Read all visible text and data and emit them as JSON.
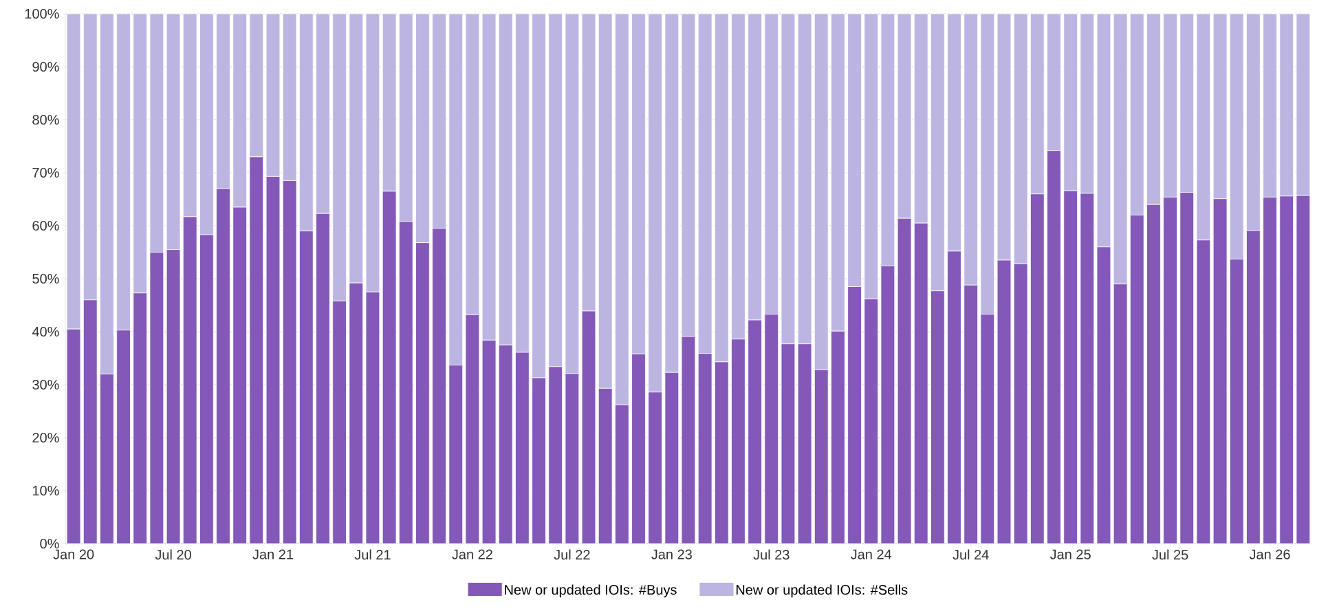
{
  "chart_data": {
    "type": "bar",
    "stacked": true,
    "categories": [
      "Jan 20",
      null,
      null,
      null,
      null,
      null,
      "Jul 20",
      null,
      null,
      null,
      null,
      null,
      "Jan 21",
      null,
      null,
      null,
      null,
      null,
      "Jul 21",
      null,
      null,
      null,
      null,
      null,
      "Jan 22",
      null,
      null,
      null,
      null,
      null,
      "Jul 22",
      null,
      null,
      null,
      null,
      null,
      "Jan 23",
      null,
      null,
      null,
      null,
      null,
      "Jul 23",
      null,
      null,
      null,
      null,
      null,
      "Jan 24",
      null,
      null,
      null,
      null,
      null,
      "Jul 24",
      null,
      null,
      null,
      null,
      null,
      "Jan 25",
      null,
      null,
      null,
      null,
      null,
      "Jul 25",
      null,
      null,
      null,
      null,
      null,
      "Jan 26",
      null,
      null
    ],
    "series": [
      {
        "name": "New or updated IOIs: #Buys",
        "color": "#8358b8",
        "values": [
          40.5,
          46,
          32,
          40.3,
          47.3,
          55,
          55.5,
          61.7,
          58.3,
          67,
          63.5,
          73,
          69.3,
          68.5,
          59,
          62.3,
          45.8,
          49.2,
          47.5,
          66.5,
          60.8,
          56.8,
          59.5,
          33.7,
          43.2,
          38.4,
          37.5,
          36.1,
          31.3,
          33.4,
          32.1,
          43.9,
          29.3,
          26.2,
          35.8,
          28.6,
          32.3,
          39.1,
          35.9,
          34.3,
          38.6,
          42.2,
          43.3,
          37.7,
          37.7,
          32.8,
          40.1,
          48.5,
          46.2,
          52.4,
          61.4,
          60.5,
          47.7,
          55.2,
          48.8,
          43.3,
          53.5,
          52.8,
          66,
          74.2,
          66.6,
          66.1,
          56,
          49,
          62,
          64,
          65.4,
          66.3,
          57.3,
          65.1,
          53.7,
          59.1,
          65.4,
          65.6,
          65.7
        ]
      },
      {
        "name": "New or updated IOIs: #Sells",
        "color": "#bdb5e1",
        "values": [
          59.5,
          54,
          68,
          59.7,
          52.7,
          45,
          44.5,
          38.3,
          41.7,
          33,
          36.5,
          27,
          30.7,
          31.5,
          41,
          37.7,
          54.2,
          50.8,
          52.5,
          33.5,
          39.2,
          43.2,
          40.5,
          66.3,
          56.8,
          61.6,
          62.5,
          63.9,
          68.7,
          66.6,
          67.9,
          56.1,
          70.7,
          73.8,
          64.2,
          71.4,
          67.7,
          60.9,
          64.1,
          65.7,
          61.4,
          57.8,
          56.7,
          62.3,
          62.3,
          67.2,
          59.9,
          51.5,
          53.8,
          47.6,
          38.6,
          39.5,
          52.3,
          44.8,
          51.2,
          56.7,
          46.5,
          47.2,
          34,
          25.8,
          33.4,
          33.9,
          44,
          51,
          38,
          36,
          34.6,
          33.7,
          42.7,
          34.9,
          46.3,
          40.9,
          34.6,
          34.4,
          34.3
        ]
      }
    ],
    "ylim": [
      0,
      100
    ],
    "yticks": [
      {
        "value": 0,
        "label": "0%"
      },
      {
        "value": 10,
        "label": "10%"
      },
      {
        "value": 20,
        "label": "20%"
      },
      {
        "value": 30,
        "label": "30%"
      },
      {
        "value": 40,
        "label": "40%"
      },
      {
        "value": 50,
        "label": "50%"
      },
      {
        "value": 60,
        "label": "60%"
      },
      {
        "value": 70,
        "label": "70%"
      },
      {
        "value": 80,
        "label": "80%"
      },
      {
        "value": 90,
        "label": "90%"
      },
      {
        "value": 100,
        "label": "100%"
      }
    ],
    "grid": "y",
    "legend": "bottom"
  }
}
